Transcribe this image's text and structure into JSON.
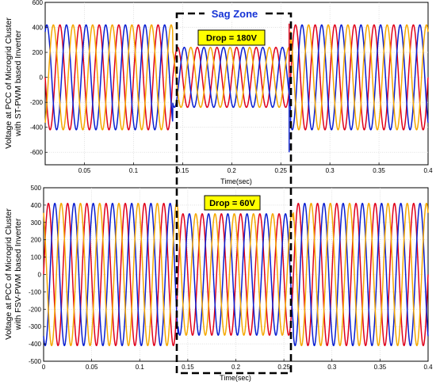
{
  "sag_zone_label": "Sag Zone",
  "chart_data": [
    {
      "type": "line",
      "title": "",
      "xlabel": "Time(sec)",
      "ylabel_lines": [
        "Voltage at PCC of Microgrid Cluster",
        "with ST-PWM based Inverter"
      ],
      "xlim": [
        0.01,
        0.4
      ],
      "ylim": [
        -700,
        600
      ],
      "x_ticks": [
        "0.05",
        "0.1",
        "0.15",
        "0.2",
        "0.25",
        "0.3",
        "0.35",
        "0.4"
      ],
      "y_ticks": [
        "-600",
        "-400",
        "-200",
        "0",
        "200",
        "400",
        "600"
      ],
      "grid": true,
      "frequency_hz": 50,
      "series": [
        {
          "phase_deg": 0,
          "color": "#e0001b"
        },
        {
          "phase_deg": -120,
          "color": "#0a1fd0"
        },
        {
          "phase_deg": 120,
          "color": "#f5a800"
        }
      ],
      "normal_amplitude": 420,
      "sag_amplitude": 240,
      "sag_start": 0.14,
      "sag_end": 0.26,
      "transient_spikes": [
        {
          "x": 0.2585,
          "y": 430
        },
        {
          "x": 0.2585,
          "y": -600
        }
      ],
      "annotation": {
        "text": "Drop = 180V",
        "x": 0.2,
        "y": 490
      }
    },
    {
      "type": "line",
      "title": "",
      "xlabel": "Time(sec)",
      "ylabel_lines": [
        "Voltage at PCC of Microgrid Cluster",
        "with FSV-PWM based Inverter"
      ],
      "xlim": [
        0,
        0.4
      ],
      "ylim": [
        -500,
        500
      ],
      "x_ticks": [
        "0",
        "0.05",
        "0.1",
        "0.15",
        "0.2",
        "0.25",
        "0.3",
        "0.35",
        "0.4"
      ],
      "y_ticks": [
        "-500",
        "-400",
        "-300",
        "-200",
        "-100",
        "0",
        "100",
        "200",
        "300",
        "400",
        "500"
      ],
      "grid": true,
      "frequency_hz": 50,
      "series": [
        {
          "phase_deg": 0,
          "color": "#e0001b"
        },
        {
          "phase_deg": -120,
          "color": "#0a1fd0"
        },
        {
          "phase_deg": 120,
          "color": "#f5a800"
        }
      ],
      "normal_amplitude": 410,
      "sag_amplitude": 350,
      "sag_start": 0.14,
      "sag_end": 0.26,
      "annotation": {
        "text": "Drop = 60V",
        "x": 0.2,
        "y": 450
      }
    }
  ]
}
